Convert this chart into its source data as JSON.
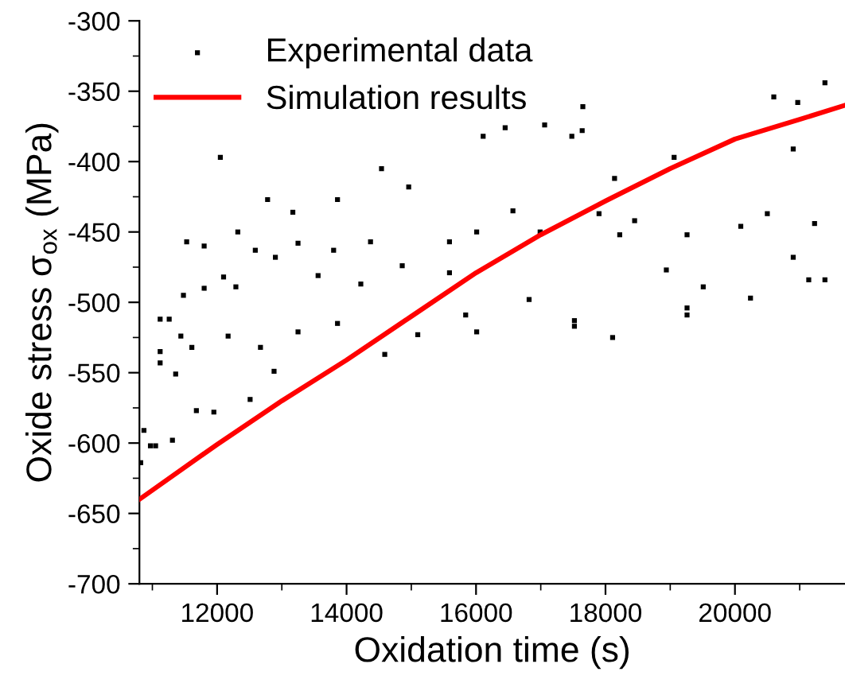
{
  "chart_data": {
    "type": "scatter",
    "xlabel": "Oxidation time (s)",
    "ylabel": "Oxide stress σ$_{ox}$ (MPa)",
    "xlim": [
      10800,
      21700
    ],
    "ylim": [
      -700,
      -300
    ],
    "xticks": [
      12000,
      14000,
      16000,
      18000,
      20000
    ],
    "yticks": [
      -700,
      -650,
      -600,
      -550,
      -500,
      -450,
      -400,
      -350,
      -300
    ],
    "grid": false,
    "legend": "top left",
    "series": [
      {
        "name": "Experimental data",
        "marker": "square",
        "color": "#000000",
        "x": [
          10820,
          10870,
          10970,
          11050,
          11120,
          11120,
          11120,
          11260,
          11310,
          11360,
          11440,
          11480,
          11530,
          11610,
          11680,
          11800,
          11800,
          11950,
          12050,
          12100,
          12170,
          12290,
          12320,
          12510,
          12590,
          12670,
          12780,
          12880,
          12900,
          13170,
          13250,
          13250,
          13560,
          13800,
          13860,
          13860,
          14220,
          14370,
          14540,
          14590,
          14860,
          14960,
          15100,
          15590,
          15590,
          15840,
          16010,
          16010,
          16110,
          16450,
          16570,
          16820,
          16990,
          17060,
          17480,
          17520,
          17520,
          17640,
          17650,
          17900,
          18110,
          18140,
          18220,
          18450,
          18940,
          19060,
          19260,
          19260,
          19260,
          19510,
          20090,
          20240,
          20500,
          20600,
          20900,
          20900,
          20970,
          21140,
          21230,
          21390,
          21390
        ],
        "values": [
          -614,
          -591,
          -602,
          -602,
          -535,
          -543,
          -512,
          -512,
          -598,
          -551,
          -524,
          -495,
          -457,
          -532,
          -577,
          -460,
          -490,
          -578,
          -397,
          -482,
          -524,
          -489,
          -450,
          -569,
          -463,
          -532,
          -427,
          -549,
          -468,
          -436,
          -458,
          -521,
          -481,
          -463,
          -427,
          -515,
          -487,
          -457,
          -405,
          -537,
          -474,
          -418,
          -523,
          -457,
          -479,
          -509,
          -450,
          -521,
          -382,
          -376,
          -435,
          -498,
          -450,
          -374,
          -382,
          -513,
          -517,
          -378,
          -361,
          -437,
          -525,
          -412,
          -452,
          -442,
          -477,
          -397,
          -452,
          -504,
          -509,
          -489,
          -446,
          -497,
          -437,
          -354,
          -391,
          -468,
          -358,
          -484,
          -444,
          -344,
          -484
        ]
      },
      {
        "name": "Simulation results",
        "type": "line",
        "line_style": "solid",
        "color": "#ff0000",
        "x": [
          10800,
          12000,
          13000,
          14000,
          15000,
          16000,
          17000,
          18000,
          19000,
          20000,
          21000,
          21700
        ],
        "values": [
          -640,
          -601,
          -570,
          -541,
          -510,
          -479,
          -452,
          -428,
          -405,
          -384,
          -370,
          -360
        ]
      }
    ]
  }
}
